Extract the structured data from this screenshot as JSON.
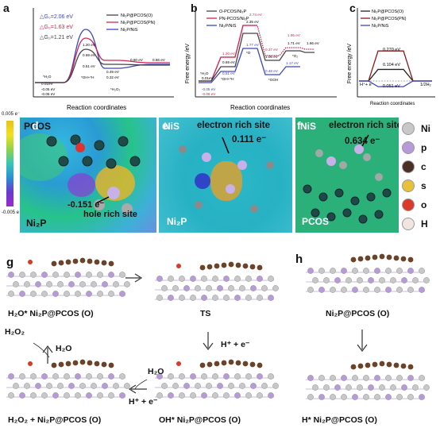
{
  "panels": {
    "a": "a",
    "b": "b",
    "c": "c",
    "d": "d",
    "e": "e",
    "f": "f",
    "g": "g",
    "h": "h"
  },
  "chart_data": [
    {
      "type": "line",
      "panel": "a",
      "xlabel": "Reaction coordinates",
      "ylabel": "",
      "legend": [
        "Ni₂P@PCOS(O)",
        "Ni₂P@PCOS(PN)",
        "Ni₂P/NiS"
      ],
      "deltas": [
        "△G₀=2.06 eV",
        "△G₀=1.63 eV",
        "△G₀=1.21 eV"
      ],
      "states": [
        "*H₂O",
        "*OH+*H",
        "*H₂O₂"
      ],
      "labels": [
        "1.20 eV",
        "0.69 eV",
        "0.51 eV",
        "0.49 eV",
        "0.32 eV",
        "0.01eV",
        "-0.05 eV",
        "-0.06 eV",
        "0.60 eV",
        "0.66 eV"
      ],
      "series": [
        {
          "name": "Ni₂P@PCOS(O)",
          "color": "#444444"
        },
        {
          "name": "Ni₂P@PCOS(PN)",
          "color": "#d1264e"
        },
        {
          "name": "Ni₂P/NiS",
          "color": "#3a45c8"
        }
      ]
    },
    {
      "type": "line",
      "panel": "b",
      "xlabel": "Reaction coordinates",
      "ylabel": "Free energy /eV",
      "legend": [
        "O-PCOS/Ni₂P",
        "PN-PCOS/Ni₂P",
        "Ni₂P/NiS"
      ],
      "states": [
        "*H₂O",
        "*OH+*H",
        "*O",
        "*OOH",
        "*O₂"
      ],
      "labels": [
        "2.74 eV",
        "2.35 eV",
        "1.20 eV",
        "0.69 eV",
        "0.51 eV",
        "1.77 eV",
        "1.95 eV",
        "1.71 eV",
        "1.66 eV",
        "0.37 eV",
        "1.06 eV",
        "0.48 eV",
        "1.17 eV",
        "0.01eV",
        "-0.05 eV",
        "-0.06 eV"
      ],
      "series": [
        {
          "name": "O-PCOS/Ni₂P",
          "color": "#444444"
        },
        {
          "name": "PN-PCOS/Ni₂P",
          "color": "#d1264e"
        },
        {
          "name": "Ni₂P/NiS",
          "color": "#3a45c8"
        }
      ]
    },
    {
      "type": "line",
      "panel": "c",
      "xlabel": "Reaction coordinates",
      "ylabel": "Free energy /eV",
      "legend": [
        "Ni₂P@PCOS(O)",
        "Ni₂P@PCOS(PN)",
        "Ni₂P/NiS"
      ],
      "labels": [
        "0.270 eV",
        "0.104 eV",
        "-0.051 eV",
        "H⁺+ e⁻",
        "1/2H₂"
      ],
      "series": [
        {
          "name": "Ni₂P@PCOS(O)",
          "color": "#222222",
          "y": 0.104
        },
        {
          "name": "Ni₂P@PCOS(PN)",
          "color": "#8b1a1a",
          "y": 0.27
        },
        {
          "name": "Ni₂P/NiS",
          "color": "#3a45c8",
          "y": -0.051
        }
      ]
    }
  ],
  "colorbar": {
    "max": "0.005 e⁻",
    "min": "-0.005 e⁻"
  },
  "maps": {
    "d": {
      "top": "PCOS",
      "bottom": "Ni₂P",
      "value": "-0.151 e⁻",
      "site": "hole rich site"
    },
    "e": {
      "top": "NiS",
      "site": "electron rich site",
      "value": "0.111 e⁻",
      "bottom": "Ni₂P"
    },
    "f": {
      "top": "NiS",
      "site": "electron rich site",
      "value": "0.634 e⁻",
      "bottom": "PCOS"
    }
  },
  "elements": [
    {
      "sym": "Ni",
      "color": "#c8c8c8"
    },
    {
      "sym": "p",
      "color": "#b79ad8"
    },
    {
      "sym": "c",
      "color": "#4a2f26"
    },
    {
      "sym": "s",
      "color": "#e8c13a"
    },
    {
      "sym": "o",
      "color": "#d93a2a"
    },
    {
      "sym": "H",
      "color": "#f2e4e0"
    }
  ],
  "mech": {
    "s1": "H₂O* Ni₂P@PCOS (O)",
    "s2": "TS",
    "s3": "OH* Ni₂P@PCOS (O)",
    "s4": "H₂O₂ + Ni₂P@PCOS (O)",
    "h1": "Ni₂P@PCOS (O)",
    "h2": "H* Ni₂P@PCOS (O)",
    "h2o2": "H₂O₂",
    "h2o": "H₂O",
    "hplus": "H⁺ + e⁻",
    "h2o_b": "H₂O",
    "hplus_b": "H⁺ + e⁻"
  },
  "colors": {
    "gray": "#444444",
    "red": "#d1264e",
    "blue": "#3a45c8",
    "ni": "#c8c8c8",
    "p": "#b79ad8",
    "c": "#6b4328"
  }
}
